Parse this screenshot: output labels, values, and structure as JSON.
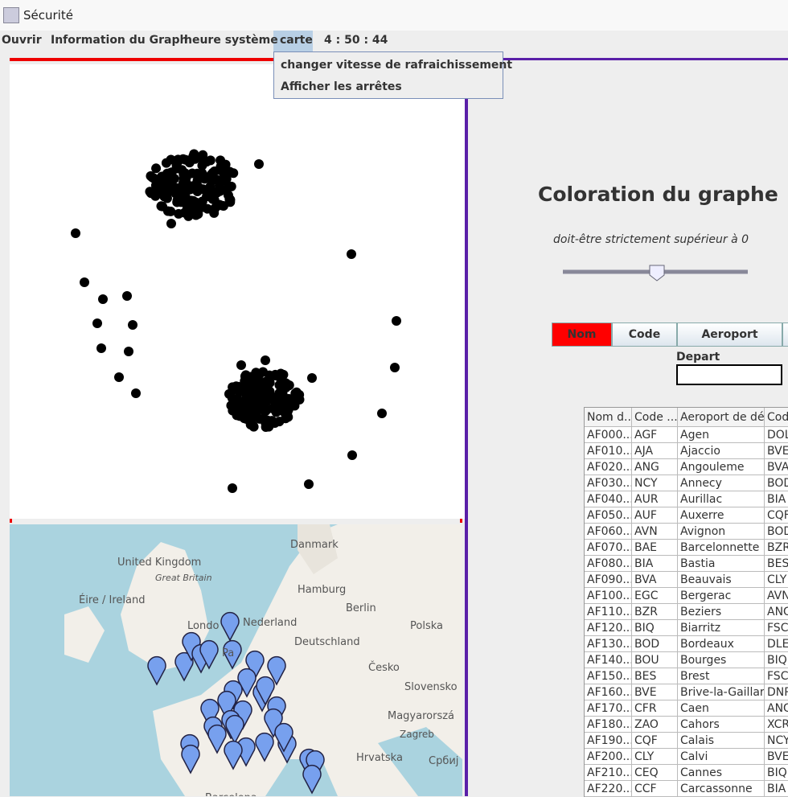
{
  "window": {
    "title": "Sécurité"
  },
  "menu": {
    "items": [
      "Ouvrir",
      "Information du Graph",
      "heure système",
      "carte"
    ],
    "clock": "4 : 50 : 44",
    "dropdown": [
      "changer vitesse de rafraichissement",
      "Afficher les arrêtes"
    ]
  },
  "map": {
    "labels": [
      "United Kingdom",
      "Great Britain",
      "Éire / Ireland",
      "Danmark",
      "Hamburg",
      "Berlin",
      "Londo",
      "Nederland",
      "Polska",
      "Deutschland",
      "Česko",
      "Slovensko",
      "Magyarorszá",
      "Zagreb",
      "Hrvatska",
      "Србиј",
      "Pa",
      "Barcelona"
    ]
  },
  "panel": {
    "title": "Coloration du graphe",
    "hint": "doit-être strictement supérieur à 0",
    "buttons": [
      "Nom",
      "Code",
      "Aeroport"
    ],
    "depart_label": "Depart"
  },
  "table": {
    "headers": [
      "Nom d...",
      "Code ...",
      "Aeroport de dé...",
      "Cod"
    ],
    "rows": [
      [
        "AF000...",
        "AGF",
        "Agen",
        "DOL"
      ],
      [
        "AF010...",
        "AJA",
        "Ajaccio",
        "BVE"
      ],
      [
        "AF020...",
        "ANG",
        "Angouleme",
        "BVA"
      ],
      [
        "AF030...",
        "NCY",
        "Annecy",
        "BOD"
      ],
      [
        "AF040...",
        "AUR",
        "Aurillac",
        "BIA"
      ],
      [
        "AF050...",
        "AUF",
        "Auxerre",
        "CQF"
      ],
      [
        "AF060...",
        "AVN",
        "Avignon",
        "BOD"
      ],
      [
        "AF070...",
        "BAE",
        "Barcelonnette",
        "BZR"
      ],
      [
        "AF080...",
        "BIA",
        "Bastia",
        "BES"
      ],
      [
        "AF090...",
        "BVA",
        "Beauvais",
        "CLY"
      ],
      [
        "AF100...",
        "EGC",
        "Bergerac",
        "AVN"
      ],
      [
        "AF110...",
        "BZR",
        "Beziers",
        "ANG"
      ],
      [
        "AF120...",
        "BIQ",
        "Biarritz",
        "FSC"
      ],
      [
        "AF130...",
        "BOD",
        "Bordeaux",
        "DLE"
      ],
      [
        "AF140...",
        "BOU",
        "Bourges",
        "BIQ"
      ],
      [
        "AF150...",
        "BES",
        "Brest",
        "FSC"
      ],
      [
        "AF160...",
        "BVE",
        "Brive-la-Gaillar...",
        "DNR"
      ],
      [
        "AF170...",
        "CFR",
        "Caen",
        "ANG"
      ],
      [
        "AF180...",
        "ZAO",
        "Cahors",
        "XCR"
      ],
      [
        "AF190...",
        "CQF",
        "Calais",
        "NCY"
      ],
      [
        "AF200...",
        "CLY",
        "Calvi",
        "BVE"
      ],
      [
        "AF210...",
        "CEQ",
        "Cannes",
        "BIQ"
      ],
      [
        "AF220...",
        "CCF",
        "Carcassonne",
        "BIA"
      ]
    ]
  }
}
